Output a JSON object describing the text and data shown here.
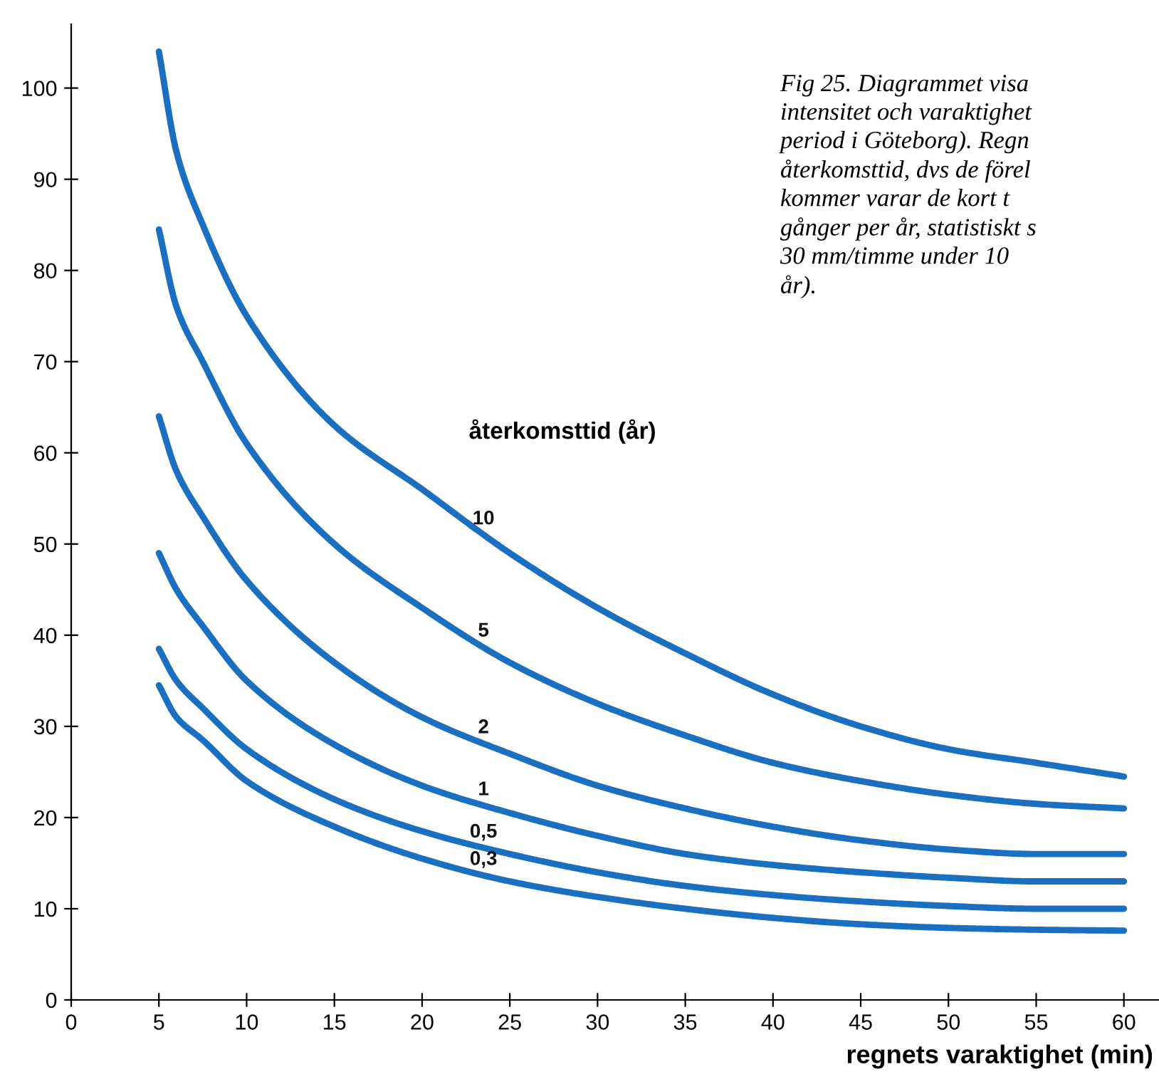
{
  "chart_data": {
    "type": "line",
    "xlabel": "regnets varaktighet (min)",
    "legend_title": "återkomsttid (år)",
    "x": [
      5,
      6,
      7.5,
      10,
      15,
      20,
      25,
      30,
      35,
      40,
      45,
      50,
      55,
      60
    ],
    "series": [
      {
        "name": "10",
        "color": "#1a6fc0",
        "values": [
          104,
          93,
          85,
          75,
          63,
          56,
          49,
          43,
          38,
          33.5,
          30,
          27.5,
          26,
          24.5
        ]
      },
      {
        "name": "5",
        "color": "#1a6fc0",
        "values": [
          84.5,
          76,
          70,
          61,
          50,
          43,
          37,
          32.5,
          29,
          26,
          24,
          22.5,
          21.5,
          21
        ]
      },
      {
        "name": "2",
        "color": "#1a6fc0",
        "values": [
          64,
          58,
          53,
          46,
          37,
          31,
          27,
          23.5,
          21,
          19,
          17.5,
          16.5,
          16,
          16
        ]
      },
      {
        "name": "1",
        "color": "#1a6fc0",
        "values": [
          49,
          45,
          41,
          35,
          28,
          23.5,
          20.5,
          18,
          16,
          14.8,
          14,
          13.4,
          13,
          13
        ]
      },
      {
        "name": "0,5",
        "color": "#1a6fc0",
        "values": [
          38.5,
          35,
          32,
          27.5,
          22,
          18.5,
          16,
          14,
          12.5,
          11.5,
          10.8,
          10.3,
          10,
          10
        ]
      },
      {
        "name": "0,3",
        "color": "#1a6fc0",
        "values": [
          34.5,
          31,
          28.5,
          24,
          19,
          15.5,
          13,
          11.3,
          10,
          9,
          8.3,
          7.9,
          7.7,
          7.6
        ]
      }
    ],
    "xlim": [
      0,
      62
    ],
    "ylim": [
      0,
      107
    ],
    "xticks": [
      0,
      5,
      10,
      15,
      20,
      25,
      30,
      35,
      40,
      45,
      50,
      55,
      60
    ],
    "yticks": [
      0,
      10,
      20,
      30,
      40,
      50,
      60,
      70,
      80,
      90,
      100
    ],
    "grid": false,
    "legend": false,
    "marker": "none",
    "line_style": "solid",
    "annotations": [
      "Fig 25. Diagrammet visa\nintensitet och varaktighet\nperiod i Göteborg). Regn\nåterkomsttid, dvs de förel\nkommer varar de kort t\ngånger per år, statistiskt s\n30 mm/timme under 10\når)."
    ]
  }
}
